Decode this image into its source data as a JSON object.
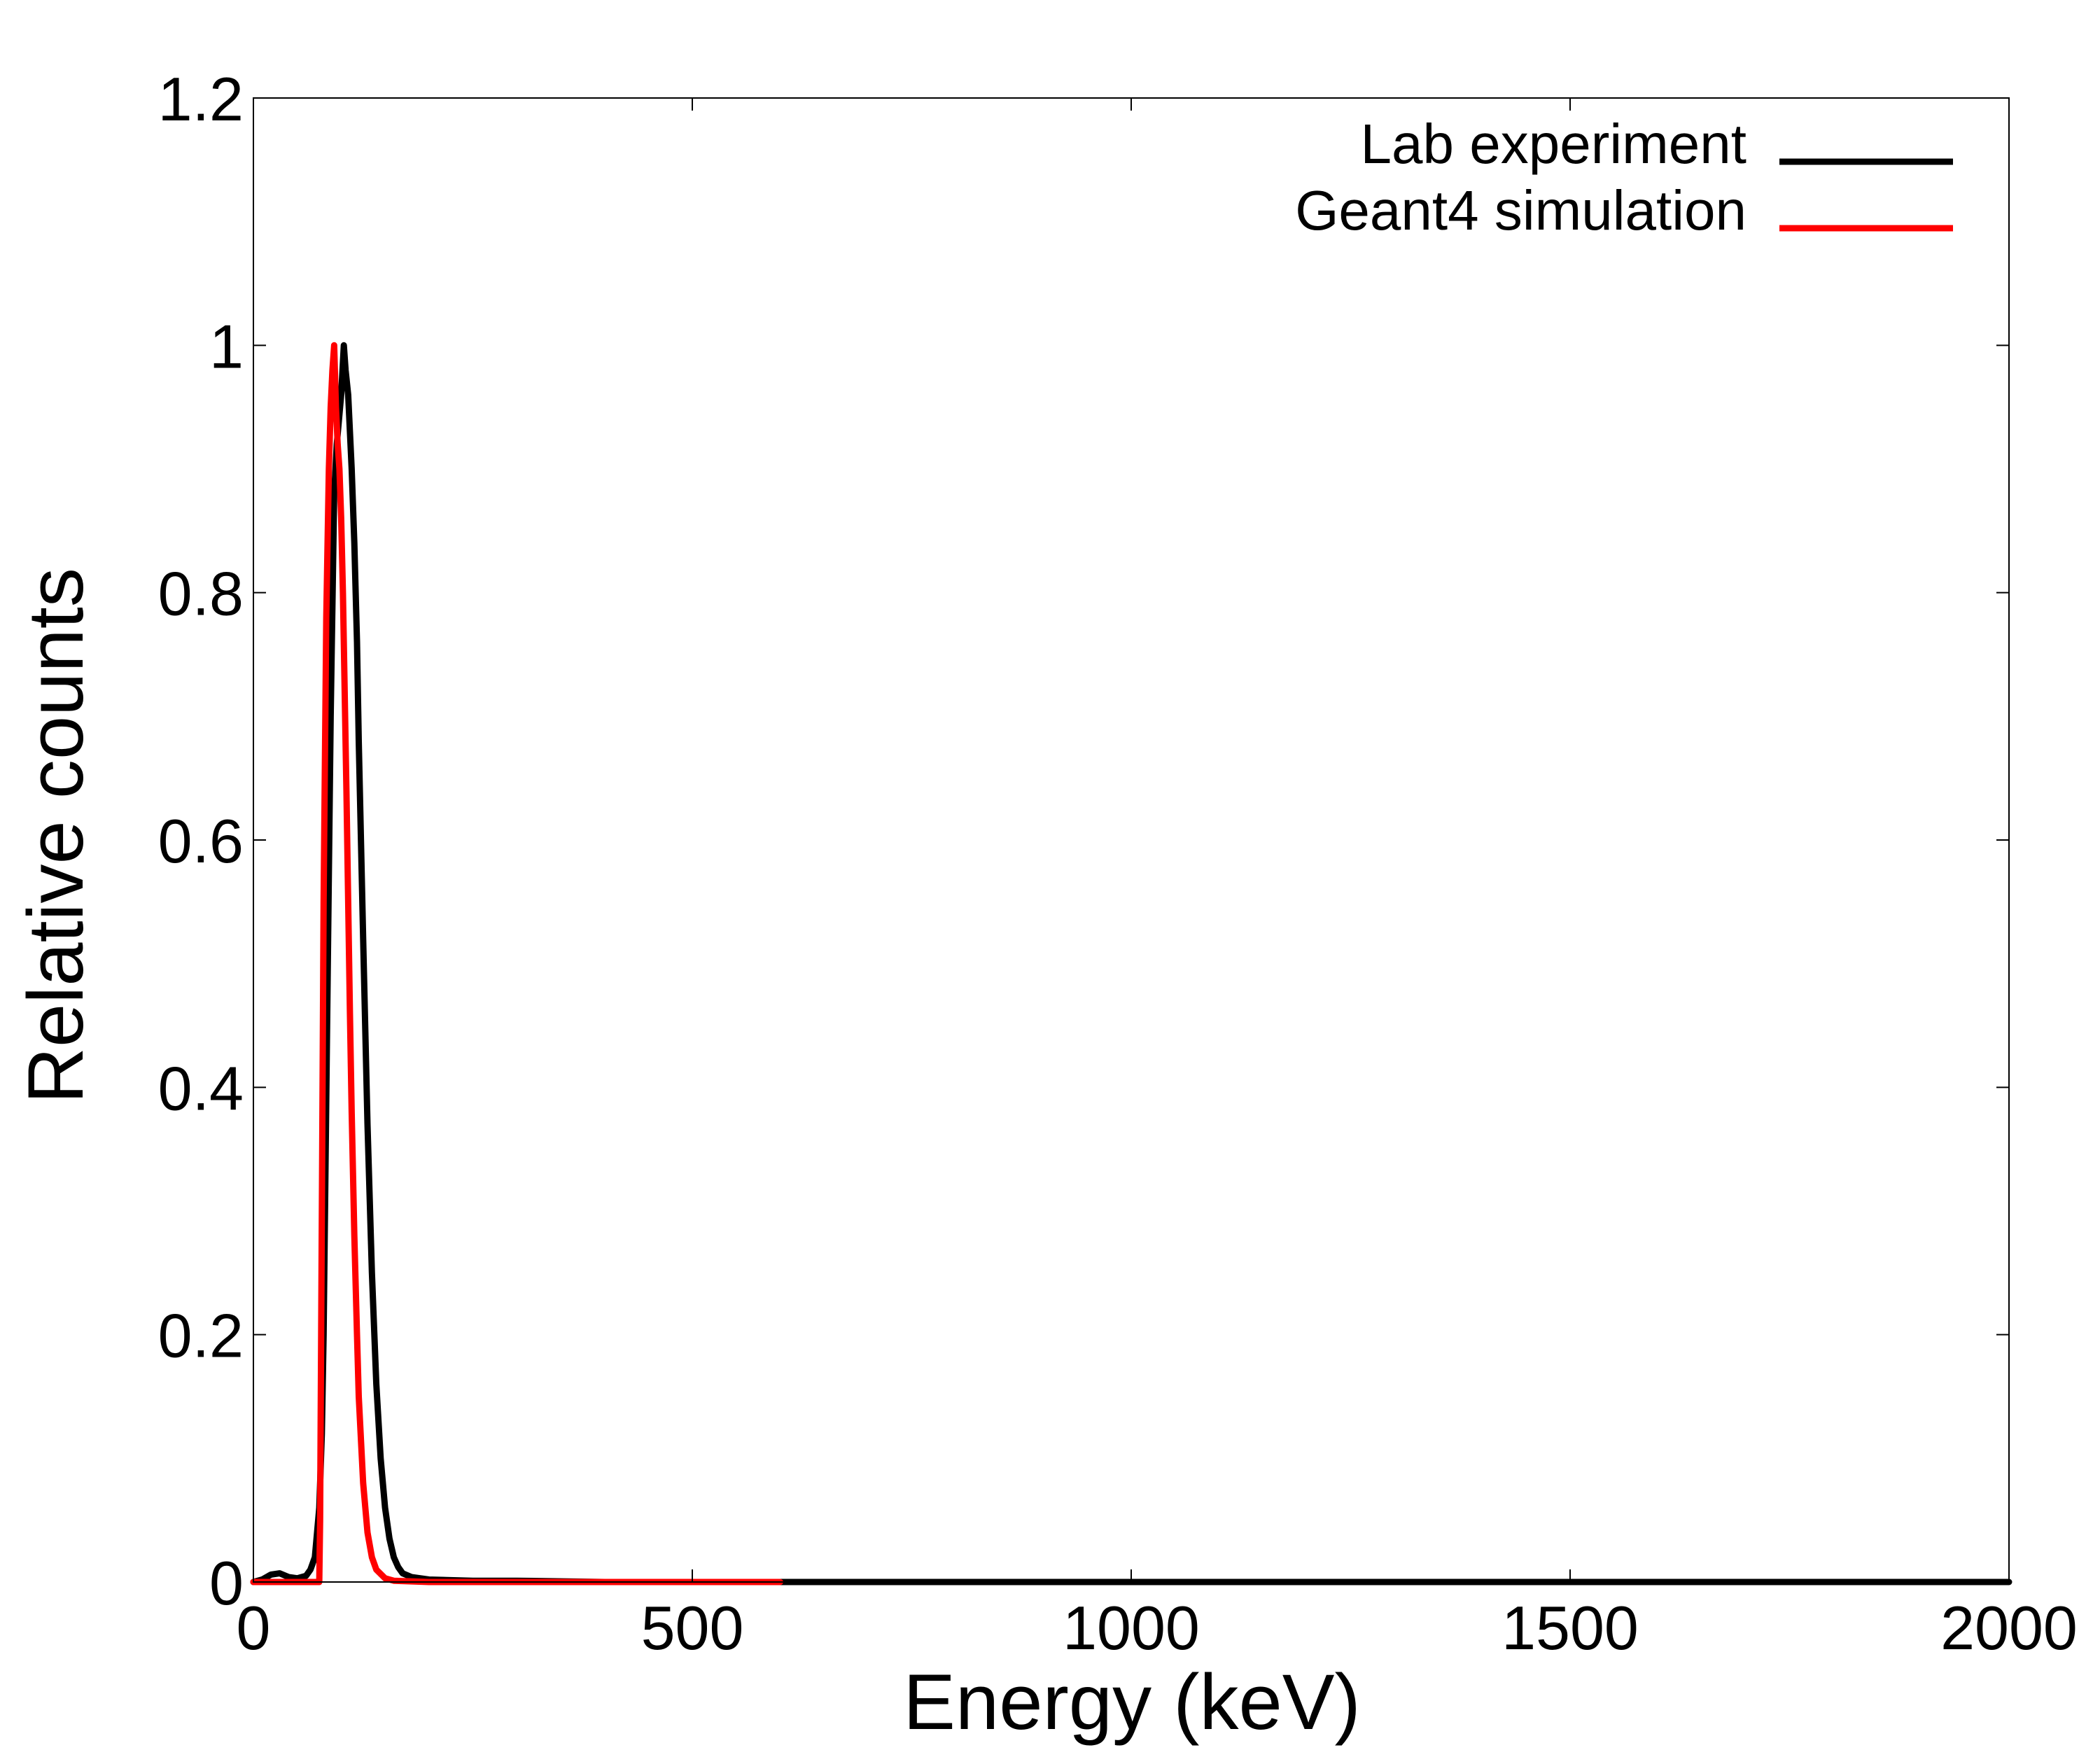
{
  "chart_data": {
    "type": "line",
    "title": "",
    "xlabel": "Energy (keV)",
    "ylabel": "Relative counts",
    "xlim": [
      0,
      2000
    ],
    "ylim": [
      0,
      1.2
    ],
    "xticks": [
      0,
      500,
      1000,
      1500,
      2000
    ],
    "xtick_labels": [
      "0",
      "500",
      "1000",
      "1500",
      "2000"
    ],
    "yticks": [
      0,
      0.2,
      0.4,
      0.6,
      0.8,
      1,
      1.2
    ],
    "ytick_labels": [
      "0",
      "0.2",
      "0.4",
      "0.6",
      "0.8",
      "1",
      "1.2"
    ],
    "grid": false,
    "legend_position": "top-right",
    "series": [
      {
        "name": "Lab experiment",
        "color": "#000000",
        "x": [
          0,
          10,
          20,
          30,
          40,
          50,
          60,
          65,
          70,
          75,
          78,
          80,
          84,
          88,
          92,
          95,
          100,
          103,
          105,
          108,
          110,
          112,
          115,
          118,
          120,
          125,
          130,
          135,
          140,
          145,
          150,
          155,
          160,
          165,
          170,
          180,
          200,
          250,
          300,
          400,
          500,
          600,
          800,
          1000,
          1200,
          1400,
          1600,
          1800,
          2000
        ],
        "y": [
          0.0,
          0.002,
          0.006,
          0.007,
          0.004,
          0.003,
          0.005,
          0.01,
          0.02,
          0.06,
          0.12,
          0.2,
          0.45,
          0.7,
          0.88,
          0.92,
          0.96,
          1.0,
          0.98,
          0.96,
          0.93,
          0.9,
          0.84,
          0.76,
          0.68,
          0.52,
          0.37,
          0.25,
          0.16,
          0.1,
          0.06,
          0.035,
          0.02,
          0.012,
          0.007,
          0.004,
          0.002,
          0.001,
          0.001,
          0.0,
          0.0,
          0.0,
          0.0,
          0.0,
          0.0,
          0.0,
          0.0,
          0.0,
          0.0
        ]
      },
      {
        "name": "Geant4 simulation",
        "color": "#ff0000",
        "x": [
          0,
          20,
          40,
          60,
          75,
          76,
          78,
          80,
          83,
          86,
          88,
          90,
          92,
          94,
          96,
          98,
          100,
          102,
          104,
          106,
          108,
          110,
          112,
          115,
          118,
          120,
          125,
          130,
          135,
          140,
          150,
          160,
          200,
          400,
          600
        ],
        "y": [
          0.0,
          0.0,
          0.0,
          0.0,
          0.0,
          0.05,
          0.3,
          0.55,
          0.78,
          0.9,
          0.95,
          0.98,
          1.0,
          0.95,
          0.92,
          0.9,
          0.86,
          0.8,
          0.72,
          0.64,
          0.55,
          0.46,
          0.38,
          0.28,
          0.2,
          0.15,
          0.08,
          0.04,
          0.02,
          0.01,
          0.003,
          0.001,
          0.0,
          0.0,
          0.0
        ]
      }
    ]
  }
}
